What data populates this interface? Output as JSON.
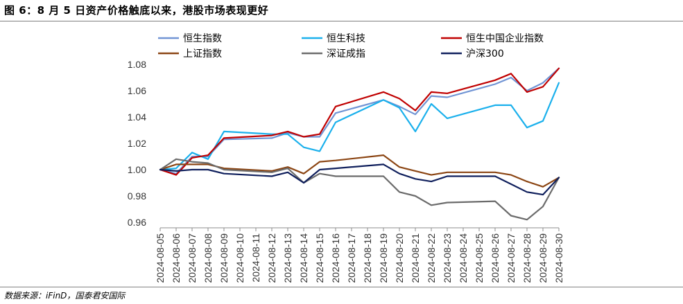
{
  "figure": {
    "title": "图 6：8 月 5 日资产价格触底以来，港股市场表现更好",
    "source": "数据来源：iFinD，国泰君安国际"
  },
  "chart_data": {
    "type": "line",
    "title": "图 6：8 月 5 日资产价格触底以来，港股市场表现更好",
    "xlabel": "",
    "ylabel": "",
    "ylim": [
      0.96,
      1.08
    ],
    "yticks": [
      "0.96",
      "0.98",
      "1.00",
      "1.02",
      "1.04",
      "1.06",
      "1.08"
    ],
    "grid": false,
    "legend_position": "top",
    "categories": [
      "2024-08-05",
      "2024-08-06",
      "2024-08-07",
      "2024-08-08",
      "2024-08-09",
      "2024-08-10",
      "2024-08-11",
      "2024-08-12",
      "2024-08-13",
      "2024-08-14",
      "2024-08-15",
      "2024-08-16",
      "2024-08-17",
      "2024-08-18",
      "2024-08-19",
      "2024-08-20",
      "2024-08-21",
      "2024-08-22",
      "2024-08-23",
      "2024-08-24",
      "2024-08-25",
      "2024-08-26",
      "2024-08-27",
      "2024-08-28",
      "2024-08-29",
      "2024-08-30"
    ],
    "series": [
      {
        "name": "恒生指数",
        "color": "#7094d4",
        "values": [
          1.0,
          0.997,
          1.01,
          1.01,
          1.023,
          null,
          null,
          1.024,
          1.028,
          1.025,
          1.025,
          1.043,
          null,
          null,
          1.053,
          1.048,
          1.042,
          1.056,
          1.055,
          null,
          null,
          1.065,
          1.07,
          1.06,
          1.066,
          1.077
        ]
      },
      {
        "name": "恒生科技",
        "color": "#1ab0ec",
        "values": [
          1.0,
          1.001,
          1.013,
          1.008,
          1.029,
          null,
          null,
          1.027,
          1.027,
          1.017,
          1.014,
          1.036,
          null,
          null,
          1.053,
          1.047,
          1.029,
          1.05,
          1.039,
          null,
          null,
          1.049,
          1.049,
          1.032,
          1.037,
          1.066
        ]
      },
      {
        "name": "恒生中国企业指数",
        "color": "#c00000",
        "values": [
          1.0,
          0.996,
          1.009,
          1.011,
          1.024,
          null,
          null,
          1.026,
          1.029,
          1.025,
          1.027,
          1.048,
          null,
          null,
          1.059,
          1.054,
          1.045,
          1.059,
          1.058,
          null,
          null,
          1.068,
          1.073,
          1.059,
          1.063,
          1.077
        ]
      },
      {
        "name": "上证指数",
        "color": "#8b4513",
        "values": [
          1.0,
          1.004,
          1.004,
          1.004,
          1.001,
          null,
          null,
          0.999,
          1.002,
          0.997,
          1.006,
          1.007,
          null,
          null,
          1.011,
          1.002,
          0.999,
          0.996,
          0.998,
          null,
          null,
          0.998,
          0.996,
          0.991,
          0.987,
          0.994
        ]
      },
      {
        "name": "深证成指",
        "color": "#6b6b6b",
        "values": [
          1.0,
          1.008,
          1.006,
          1.005,
          1.0,
          null,
          null,
          0.998,
          1.001,
          0.99,
          0.997,
          0.995,
          null,
          null,
          0.995,
          0.983,
          0.98,
          0.973,
          0.975,
          null,
          null,
          0.976,
          0.965,
          0.962,
          0.972,
          0.994
        ]
      },
      {
        "name": "沪深300",
        "color": "#0f1f5c",
        "values": [
          1.0,
          0.999,
          1.0,
          1.0,
          0.997,
          null,
          null,
          0.995,
          0.998,
          0.99,
          1.0,
          1.001,
          null,
          null,
          1.004,
          0.997,
          0.993,
          0.991,
          0.995,
          null,
          null,
          0.995,
          0.989,
          0.983,
          0.981,
          0.994
        ]
      }
    ]
  }
}
